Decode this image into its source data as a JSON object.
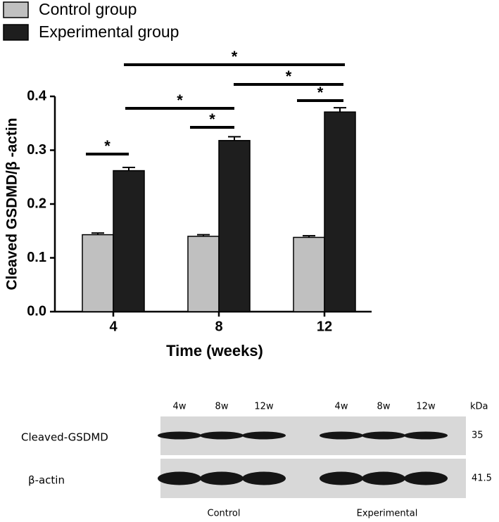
{
  "chart_data": {
    "type": "bar",
    "ylabel": "Cleaved GSDMD/β -actin",
    "xlabel": "Time (weeks)",
    "categories": [
      "4",
      "8",
      "12"
    ],
    "series": [
      {
        "name": "Control group",
        "color": "#c0c0c0",
        "values": [
          0.143,
          0.14,
          0.138
        ],
        "errors": [
          0.003,
          0.003,
          0.003
        ]
      },
      {
        "name": "Experimental group",
        "color": "#1e1e1e",
        "values": [
          0.262,
          0.318,
          0.371
        ],
        "errors": [
          0.006,
          0.007,
          0.008
        ]
      }
    ],
    "ylim": [
      0,
      0.4
    ],
    "yticks": [
      {
        "value": 0,
        "label": "0.0"
      },
      0.1,
      0.2,
      0.3,
      0.4
    ],
    "annotations": [
      "*",
      "*",
      "*",
      "*",
      "*",
      "*"
    ],
    "legend": "top-left"
  },
  "blot": {
    "lanes": [
      "4w",
      "8w",
      "12w",
      "4w",
      "8w",
      "12w"
    ],
    "unit": "kDa",
    "rows": [
      {
        "label": "Cleaved-GSDMD",
        "kda": "35"
      },
      {
        "label": "β-actin",
        "kda": "41.5"
      }
    ],
    "groups": [
      "Control",
      "Experimental"
    ]
  }
}
